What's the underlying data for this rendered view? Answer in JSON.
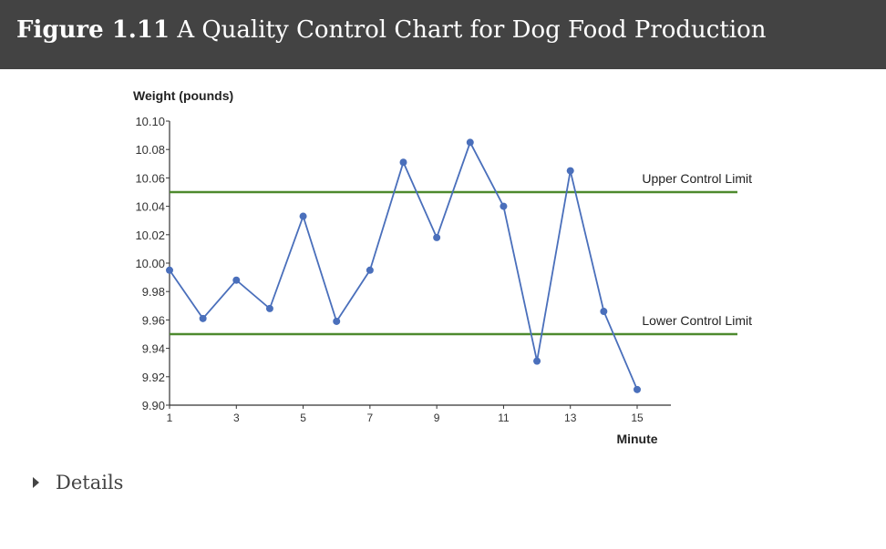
{
  "header": {
    "figure_label": "Figure  1.11",
    "title": "A Quality Control Chart for Dog Food Production"
  },
  "details": {
    "label": "Details"
  },
  "colors": {
    "header_bg": "#434343",
    "series": "#4a6fbb",
    "limit": "#4e8a2e",
    "axis": "#333333"
  },
  "chart_data": {
    "type": "line",
    "ylabel": "Weight (pounds)",
    "xlabel": "Minute",
    "ylim": [
      9.9,
      10.1
    ],
    "xlim": [
      1,
      16
    ],
    "y_ticks": [
      "9.90",
      "9.92",
      "9.94",
      "9.96",
      "9.98",
      "10.00",
      "10.02",
      "10.04",
      "10.06",
      "10.08",
      "10.10"
    ],
    "x_ticks": [
      1,
      3,
      5,
      7,
      9,
      11,
      13,
      15
    ],
    "x": [
      1,
      2,
      3,
      4,
      5,
      6,
      7,
      8,
      9,
      10,
      11,
      12,
      13,
      14,
      15
    ],
    "values": [
      9.995,
      9.961,
      9.988,
      9.968,
      10.033,
      9.959,
      9.995,
      10.071,
      10.018,
      10.085,
      10.04,
      9.931,
      10.065,
      9.966,
      9.911
    ],
    "upper_limit": {
      "value": 10.05,
      "label": "Upper Control Limit"
    },
    "lower_limit": {
      "value": 9.95,
      "label": "Lower Control Limit"
    },
    "grid": false
  }
}
